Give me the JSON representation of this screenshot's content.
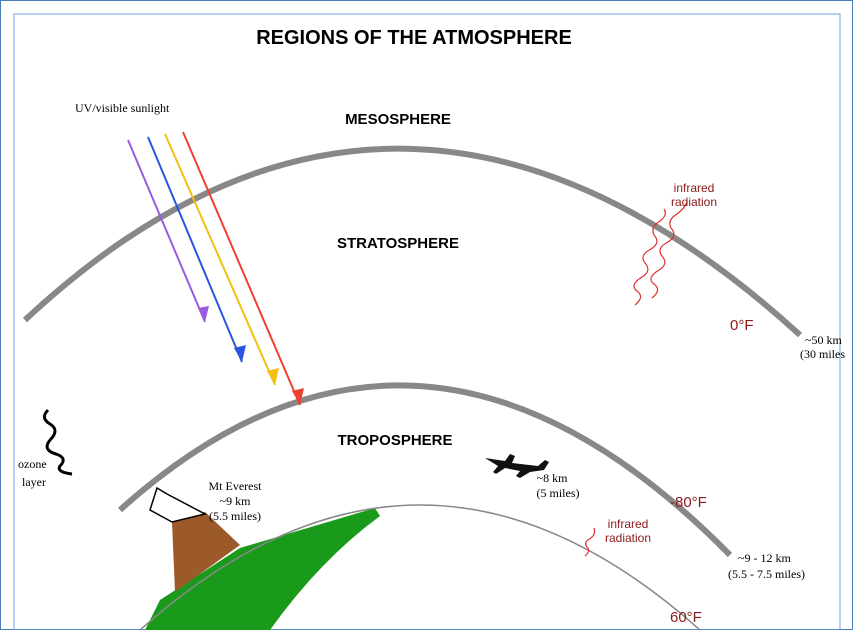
{
  "title": "REGIONS OF THE ATMOSPHERE",
  "sunlight": "UV/visible sunlight",
  "layers": {
    "mesosphere": "MESOSPHERE",
    "stratosphere": "STRATOSPHERE",
    "troposphere": "TROPOSPHERE"
  },
  "infrared_upper": [
    "infrared",
    "radiation"
  ],
  "infrared_lower": [
    "infrared",
    "radiation"
  ],
  "temp_0": "0°F",
  "temp_minus80": "-80°F",
  "temp_60": "60°F",
  "stratopause": [
    "~50 km",
    "(30 miles"
  ],
  "tropopause": [
    "~9 - 12 km",
    "(5.5 - 7.5 miles)"
  ],
  "ozone": [
    "ozone",
    "layer"
  ],
  "everest": [
    "Mt Everest",
    "~9 km",
    "(5.5 miles)"
  ],
  "plane": [
    "~8 km",
    "(5 miles)"
  ]
}
